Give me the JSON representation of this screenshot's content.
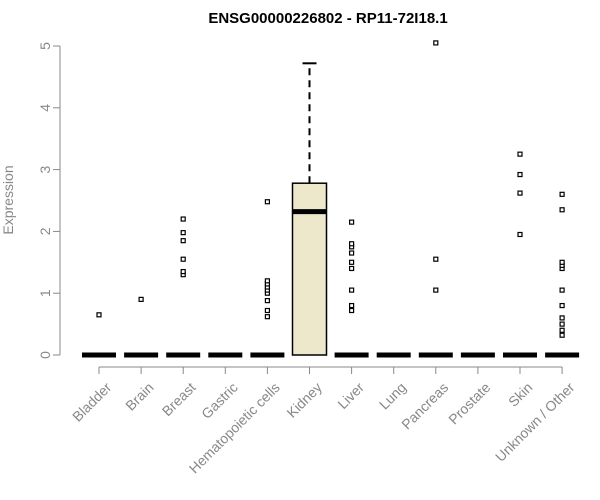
{
  "chart_data": {
    "type": "box",
    "title": "ENSG00000226802 - RP11-72I18.1",
    "ylabel": "Expression",
    "xlabel": "",
    "ylim": [
      0,
      5
    ],
    "yticks": [
      0,
      1,
      2,
      3,
      4,
      5
    ],
    "grid": false,
    "legend": "none",
    "box_fill": "#ede7cc",
    "categories": [
      "Bladder",
      "Brain",
      "Breast",
      "Gastric",
      "Hematopoietic cells",
      "Kidney",
      "Liver",
      "Lung",
      "Pancreas",
      "Prostate",
      "Skin",
      "Unknown / Other"
    ],
    "boxes": [
      {
        "category": "Bladder",
        "q1": 0,
        "median": 0,
        "q3": 0,
        "whisker_low": 0,
        "whisker_high": 0,
        "outliers": [
          0.65
        ]
      },
      {
        "category": "Brain",
        "q1": 0,
        "median": 0,
        "q3": 0,
        "whisker_low": 0,
        "whisker_high": 0,
        "outliers": [
          0.9
        ]
      },
      {
        "category": "Breast",
        "q1": 0,
        "median": 0,
        "q3": 0,
        "whisker_low": 0,
        "whisker_high": 0,
        "outliers": [
          1.3,
          1.35,
          1.55,
          1.85,
          1.98,
          2.2
        ]
      },
      {
        "category": "Gastric",
        "q1": 0,
        "median": 0,
        "q3": 0,
        "whisker_low": 0,
        "whisker_high": 0,
        "outliers": []
      },
      {
        "category": "Hematopoietic cells",
        "q1": 0,
        "median": 0,
        "q3": 0,
        "whisker_low": 0,
        "whisker_high": 0,
        "outliers": [
          0.62,
          0.72,
          0.88,
          1.0,
          1.05,
          1.1,
          1.15,
          1.2,
          2.48
        ]
      },
      {
        "category": "Kidney",
        "q1": 0,
        "median": 2.32,
        "q3": 2.78,
        "whisker_low": 0,
        "whisker_high": 4.72,
        "outliers": []
      },
      {
        "category": "Liver",
        "q1": 0,
        "median": 0,
        "q3": 0,
        "whisker_low": 0,
        "whisker_high": 0,
        "outliers": [
          0.72,
          0.8,
          1.05,
          1.4,
          1.5,
          1.65,
          1.75,
          1.8,
          2.15
        ]
      },
      {
        "category": "Lung",
        "q1": 0,
        "median": 0,
        "q3": 0,
        "whisker_low": 0,
        "whisker_high": 0,
        "outliers": []
      },
      {
        "category": "Pancreas",
        "q1": 0,
        "median": 0,
        "q3": 0,
        "whisker_low": 0,
        "whisker_high": 0,
        "outliers": [
          1.05,
          1.55,
          5.05
        ]
      },
      {
        "category": "Prostate",
        "q1": 0,
        "median": 0,
        "q3": 0,
        "whisker_low": 0,
        "whisker_high": 0,
        "outliers": []
      },
      {
        "category": "Skin",
        "q1": 0,
        "median": 0,
        "q3": 0,
        "whisker_low": 0,
        "whisker_high": 0,
        "outliers": [
          1.95,
          2.62,
          2.92,
          3.25
        ]
      },
      {
        "category": "Unknown / Other",
        "q1": 0,
        "median": 0,
        "q3": 0,
        "whisker_low": 0,
        "whisker_high": 0,
        "outliers": [
          0.32,
          0.4,
          0.5,
          0.6,
          0.8,
          1.05,
          1.4,
          1.45,
          1.5,
          2.35,
          2.6
        ]
      }
    ]
  }
}
